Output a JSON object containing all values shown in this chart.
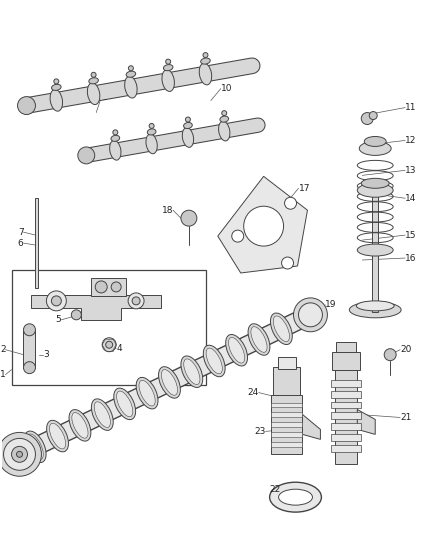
{
  "background_color": "#ffffff",
  "line_color": "#444444",
  "label_color": "#333333",
  "fig_w": 4.38,
  "fig_h": 5.33,
  "dpi": 100
}
